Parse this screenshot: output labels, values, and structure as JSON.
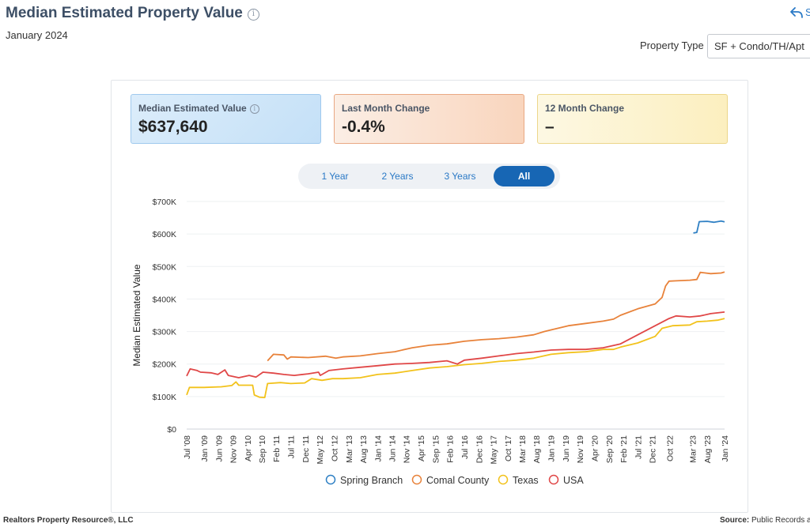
{
  "header": {
    "title": "Median Estimated Property Value",
    "date": "January 2024",
    "share_partial": "S"
  },
  "filter": {
    "property_type_label": "Property Type",
    "property_type_value": "SF + Condo/TH/Apt"
  },
  "cards": [
    {
      "label": "Median Estimated Value",
      "value": "$637,640"
    },
    {
      "label": "Last Month Change",
      "value": "-0.4%"
    },
    {
      "label": "12 Month Change",
      "value": "–"
    }
  ],
  "range_tabs": [
    {
      "label": "1 Year",
      "active": false
    },
    {
      "label": "2 Years",
      "active": false
    },
    {
      "label": "3 Years",
      "active": false
    },
    {
      "label": "All",
      "active": true
    }
  ],
  "footer": {
    "left": "Realtors Property Resource®, LLC",
    "right_label": "Source:",
    "right_value": "Public Records a"
  },
  "chart_data": {
    "type": "line",
    "ylabel": "Median Estimated Value",
    "ylim": [
      0,
      700000
    ],
    "yticks": [
      {
        "v": 0,
        "label": "$0"
      },
      {
        "v": 100000,
        "label": "$100K"
      },
      {
        "v": 200000,
        "label": "$200K"
      },
      {
        "v": 300000,
        "label": "$300K"
      },
      {
        "v": 400000,
        "label": "$400K"
      },
      {
        "v": 500000,
        "label": "$500K"
      },
      {
        "v": 600000,
        "label": "$600K"
      },
      {
        "v": 700000,
        "label": "$700K"
      }
    ],
    "xrange": [
      2008.5,
      2024.0
    ],
    "xticks": [
      {
        "t": 2008.5,
        "label": "Jul '08"
      },
      {
        "t": 2009.0,
        "label": "Jan '09"
      },
      {
        "t": 2009.42,
        "label": "Jun '09"
      },
      {
        "t": 2009.83,
        "label": "Nov '09"
      },
      {
        "t": 2010.25,
        "label": "Apr '10"
      },
      {
        "t": 2010.67,
        "label": "Sep '10"
      },
      {
        "t": 2011.08,
        "label": "Feb '11"
      },
      {
        "t": 2011.5,
        "label": "Jul '11"
      },
      {
        "t": 2011.92,
        "label": "Dec '11"
      },
      {
        "t": 2012.33,
        "label": "May '12"
      },
      {
        "t": 2012.75,
        "label": "Oct '12"
      },
      {
        "t": 2013.17,
        "label": "Mar '13"
      },
      {
        "t": 2013.58,
        "label": "Aug '13"
      },
      {
        "t": 2014.0,
        "label": "Jan '14"
      },
      {
        "t": 2014.42,
        "label": "Jun '14"
      },
      {
        "t": 2014.83,
        "label": "Nov '14"
      },
      {
        "t": 2015.25,
        "label": "Apr '15"
      },
      {
        "t": 2015.67,
        "label": "Sep '15"
      },
      {
        "t": 2016.08,
        "label": "Feb '16"
      },
      {
        "t": 2016.5,
        "label": "Jul '16"
      },
      {
        "t": 2016.92,
        "label": "Dec '16"
      },
      {
        "t": 2017.33,
        "label": "May '17"
      },
      {
        "t": 2017.75,
        "label": "Oct '17"
      },
      {
        "t": 2018.17,
        "label": "Mar '18"
      },
      {
        "t": 2018.58,
        "label": "Aug '18"
      },
      {
        "t": 2019.0,
        "label": "Jan '19"
      },
      {
        "t": 2019.42,
        "label": "Jun '19"
      },
      {
        "t": 2019.83,
        "label": "Nov '19"
      },
      {
        "t": 2020.25,
        "label": "Apr '20"
      },
      {
        "t": 2020.67,
        "label": "Sep '20"
      },
      {
        "t": 2021.08,
        "label": "Feb '21"
      },
      {
        "t": 2021.5,
        "label": "Jul '21"
      },
      {
        "t": 2021.92,
        "label": "Dec '21"
      },
      {
        "t": 2022.42,
        "label": "Oct '22"
      },
      {
        "t": 2023.08,
        "label": "Mar '23"
      },
      {
        "t": 2023.5,
        "label": "Aug '23"
      },
      {
        "t": 2024.0,
        "label": "Jan '24"
      }
    ],
    "series": [
      {
        "name": "Spring Branch",
        "color": "#2f80c4",
        "points": [
          [
            2023.1,
            603000
          ],
          [
            2023.2,
            605000
          ],
          [
            2023.27,
            638000
          ],
          [
            2023.5,
            639000
          ],
          [
            2023.7,
            636000
          ],
          [
            2023.9,
            640000
          ],
          [
            2024.0,
            637640
          ]
        ]
      },
      {
        "name": "Comal County",
        "color": "#e8823a",
        "points": [
          [
            2010.83,
            210000
          ],
          [
            2011.0,
            230000
          ],
          [
            2011.3,
            228000
          ],
          [
            2011.4,
            215000
          ],
          [
            2011.5,
            222000
          ],
          [
            2012.0,
            220000
          ],
          [
            2012.5,
            224000
          ],
          [
            2012.8,
            218000
          ],
          [
            2013.0,
            222000
          ],
          [
            2013.5,
            225000
          ],
          [
            2014.0,
            232000
          ],
          [
            2014.5,
            238000
          ],
          [
            2015.0,
            250000
          ],
          [
            2015.5,
            258000
          ],
          [
            2016.0,
            262000
          ],
          [
            2016.5,
            270000
          ],
          [
            2017.0,
            275000
          ],
          [
            2017.5,
            278000
          ],
          [
            2018.0,
            283000
          ],
          [
            2018.5,
            290000
          ],
          [
            2018.8,
            300000
          ],
          [
            2019.0,
            305000
          ],
          [
            2019.5,
            318000
          ],
          [
            2020.0,
            325000
          ],
          [
            2020.5,
            332000
          ],
          [
            2020.8,
            338000
          ],
          [
            2021.0,
            350000
          ],
          [
            2021.5,
            370000
          ],
          [
            2022.0,
            385000
          ],
          [
            2022.2,
            405000
          ],
          [
            2022.3,
            440000
          ],
          [
            2022.4,
            455000
          ],
          [
            2022.6,
            456000
          ],
          [
            2023.0,
            458000
          ],
          [
            2023.2,
            460000
          ],
          [
            2023.3,
            482000
          ],
          [
            2023.6,
            478000
          ],
          [
            2023.9,
            480000
          ],
          [
            2024.0,
            483000
          ]
        ]
      },
      {
        "name": "Texas",
        "color": "#f2c21b",
        "points": [
          [
            2008.5,
            105000
          ],
          [
            2008.58,
            128000
          ],
          [
            2009.0,
            128000
          ],
          [
            2009.5,
            130000
          ],
          [
            2009.8,
            134000
          ],
          [
            2009.92,
            145000
          ],
          [
            2010.0,
            135000
          ],
          [
            2010.4,
            135000
          ],
          [
            2010.45,
            105000
          ],
          [
            2010.6,
            98000
          ],
          [
            2010.75,
            97000
          ],
          [
            2010.83,
            140000
          ],
          [
            2011.2,
            143000
          ],
          [
            2011.5,
            140000
          ],
          [
            2011.9,
            142000
          ],
          [
            2012.1,
            155000
          ],
          [
            2012.4,
            150000
          ],
          [
            2012.7,
            155000
          ],
          [
            2013.0,
            155000
          ],
          [
            2013.5,
            158000
          ],
          [
            2014.0,
            168000
          ],
          [
            2014.5,
            172000
          ],
          [
            2015.0,
            180000
          ],
          [
            2015.5,
            188000
          ],
          [
            2016.0,
            192000
          ],
          [
            2016.5,
            198000
          ],
          [
            2017.0,
            202000
          ],
          [
            2017.5,
            208000
          ],
          [
            2018.0,
            212000
          ],
          [
            2018.5,
            218000
          ],
          [
            2019.0,
            230000
          ],
          [
            2019.5,
            235000
          ],
          [
            2020.0,
            238000
          ],
          [
            2020.5,
            245000
          ],
          [
            2020.8,
            245000
          ],
          [
            2021.0,
            252000
          ],
          [
            2021.5,
            265000
          ],
          [
            2022.0,
            285000
          ],
          [
            2022.2,
            310000
          ],
          [
            2022.5,
            318000
          ],
          [
            2023.0,
            320000
          ],
          [
            2023.2,
            330000
          ],
          [
            2023.5,
            332000
          ],
          [
            2023.8,
            335000
          ],
          [
            2024.0,
            340000
          ]
        ]
      },
      {
        "name": "USA",
        "color": "#e04747",
        "points": [
          [
            2008.5,
            163000
          ],
          [
            2008.6,
            185000
          ],
          [
            2008.8,
            180000
          ],
          [
            2008.9,
            175000
          ],
          [
            2009.2,
            173000
          ],
          [
            2009.4,
            168000
          ],
          [
            2009.6,
            182000
          ],
          [
            2009.7,
            165000
          ],
          [
            2010.0,
            158000
          ],
          [
            2010.3,
            165000
          ],
          [
            2010.5,
            160000
          ],
          [
            2010.7,
            175000
          ],
          [
            2011.0,
            172000
          ],
          [
            2011.3,
            168000
          ],
          [
            2011.6,
            165000
          ],
          [
            2012.0,
            170000
          ],
          [
            2012.3,
            175000
          ],
          [
            2012.35,
            165000
          ],
          [
            2012.6,
            180000
          ],
          [
            2013.0,
            185000
          ],
          [
            2013.5,
            190000
          ],
          [
            2014.0,
            195000
          ],
          [
            2014.5,
            200000
          ],
          [
            2015.0,
            202000
          ],
          [
            2015.5,
            205000
          ],
          [
            2016.0,
            210000
          ],
          [
            2016.3,
            200000
          ],
          [
            2016.5,
            212000
          ],
          [
            2017.0,
            218000
          ],
          [
            2017.5,
            225000
          ],
          [
            2018.0,
            232000
          ],
          [
            2018.5,
            237000
          ],
          [
            2019.0,
            243000
          ],
          [
            2019.5,
            245000
          ],
          [
            2020.0,
            245000
          ],
          [
            2020.5,
            250000
          ],
          [
            2021.0,
            262000
          ],
          [
            2021.5,
            290000
          ],
          [
            2022.0,
            318000
          ],
          [
            2022.4,
            340000
          ],
          [
            2022.6,
            348000
          ],
          [
            2023.0,
            345000
          ],
          [
            2023.3,
            348000
          ],
          [
            2023.6,
            355000
          ],
          [
            2024.0,
            360000
          ]
        ]
      }
    ]
  }
}
